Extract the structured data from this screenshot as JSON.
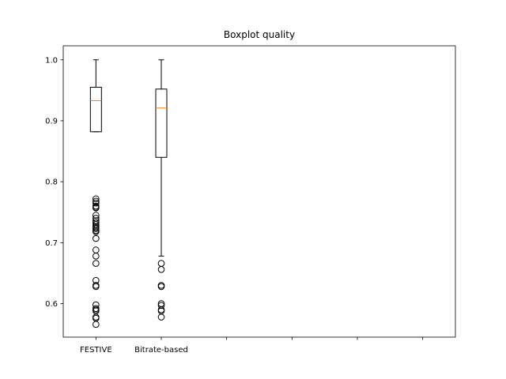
{
  "chart_data": {
    "type": "boxplot",
    "title": "Boxplot quality",
    "xlabel": "",
    "ylabel": "",
    "ylim": [
      0.545,
      1.023
    ],
    "xlim": [
      0.5,
      6.5
    ],
    "yticks": [
      0.6,
      0.7,
      0.8,
      0.9,
      1.0
    ],
    "ytick_labels": [
      "0.6",
      "0.7",
      "0.8",
      "0.9",
      "1.0"
    ],
    "xtick_positions": [
      1,
      2,
      3,
      4,
      5,
      6
    ],
    "xtick_labels": [
      "FESTIVE",
      "Bitrate-based",
      "",
      "",
      "",
      ""
    ],
    "grid": false,
    "colors": {
      "box": "#000000",
      "median": "#ff7f0e",
      "outlier": "#000000",
      "background": "#ffffff"
    },
    "series": [
      {
        "name": "FESTIVE",
        "position": 1,
        "whisker_low": 0.882,
        "q1": 0.882,
        "median": 0.933,
        "q3": 0.955,
        "whisker_high": 1.0,
        "outliers": [
          0.772,
          0.768,
          0.765,
          0.76,
          0.758,
          0.757,
          0.745,
          0.74,
          0.736,
          0.733,
          0.73,
          0.727,
          0.725,
          0.723,
          0.72,
          0.718,
          0.707,
          0.688,
          0.678,
          0.666,
          0.638,
          0.63,
          0.628,
          0.598,
          0.592,
          0.59,
          0.588,
          0.578,
          0.576,
          0.566
        ]
      },
      {
        "name": "Bitrate-based",
        "position": 2,
        "whisker_low": 0.678,
        "q1": 0.84,
        "median": 0.921,
        "q3": 0.952,
        "whisker_high": 1.0,
        "outliers": [
          0.666,
          0.656,
          0.63,
          0.628,
          0.6,
          0.597,
          0.59,
          0.588,
          0.578
        ]
      }
    ]
  }
}
